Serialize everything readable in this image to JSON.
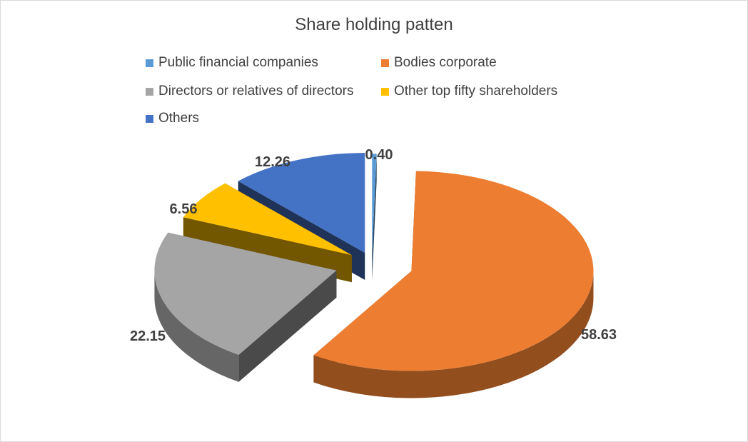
{
  "chart_data": {
    "type": "pie",
    "title": "Share holding patten",
    "legend_position": "top",
    "exploded": true,
    "three_d": true,
    "slices": [
      {
        "label": "Public financial companies",
        "value": 0.4,
        "display": "0.40",
        "color": "#5B9BD5"
      },
      {
        "label": "Bodies corporate",
        "value": 58.63,
        "display": "58.63",
        "color": "#ED7D31"
      },
      {
        "label": "Directors or relatives of directors",
        "value": 22.15,
        "display": "22.15",
        "color": "#A5A5A5"
      },
      {
        "label": "Other top fifty shareholders",
        "value": 6.56,
        "display": "6.56",
        "color": "#FFC000"
      },
      {
        "label": "Others",
        "value": 12.26,
        "display": "12.26",
        "color": "#4472C4"
      }
    ]
  }
}
